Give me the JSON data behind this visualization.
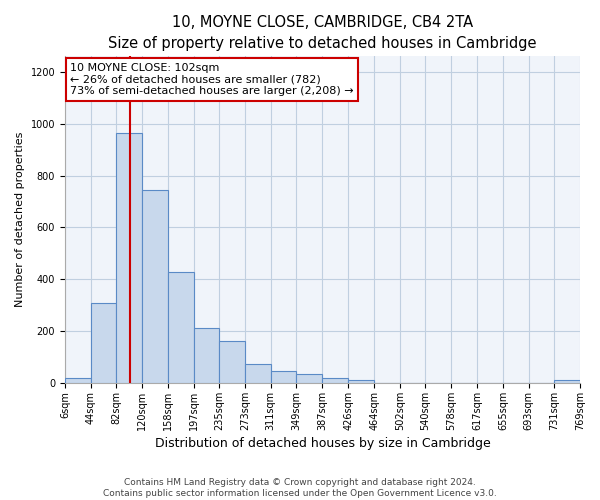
{
  "title": "10, MOYNE CLOSE, CAMBRIDGE, CB4 2TA",
  "subtitle": "Size of property relative to detached houses in Cambridge",
  "xlabel": "Distribution of detached houses by size in Cambridge",
  "ylabel": "Number of detached properties",
  "bar_color": "#c8d8ec",
  "bar_edge_color": "#5a8ac6",
  "bins": [
    6,
    44,
    82,
    120,
    158,
    197,
    235,
    273,
    311,
    349,
    387,
    426,
    464,
    502,
    540,
    578,
    617,
    655,
    693,
    731,
    769
  ],
  "bin_labels": [
    "6sqm",
    "44sqm",
    "82sqm",
    "120sqm",
    "158sqm",
    "197sqm",
    "235sqm",
    "273sqm",
    "311sqm",
    "349sqm",
    "387sqm",
    "426sqm",
    "464sqm",
    "502sqm",
    "540sqm",
    "578sqm",
    "617sqm",
    "655sqm",
    "693sqm",
    "731sqm",
    "769sqm"
  ],
  "counts": [
    20,
    308,
    963,
    743,
    430,
    213,
    163,
    74,
    47,
    35,
    18,
    10,
    0,
    0,
    0,
    0,
    0,
    0,
    0,
    12
  ],
  "property_size": 102,
  "property_line_color": "#cc0000",
  "annotation_text": "10 MOYNE CLOSE: 102sqm\n← 26% of detached houses are smaller (782)\n73% of semi-detached houses are larger (2,208) →",
  "annotation_box_color": "#ffffff",
  "annotation_box_edge_color": "#cc0000",
  "ylim": [
    0,
    1260
  ],
  "yticks": [
    0,
    200,
    400,
    600,
    800,
    1000,
    1200
  ],
  "footer_text": "Contains HM Land Registry data © Crown copyright and database right 2024.\nContains public sector information licensed under the Open Government Licence v3.0.",
  "title_fontsize": 10.5,
  "subtitle_fontsize": 9,
  "xlabel_fontsize": 9,
  "ylabel_fontsize": 8,
  "tick_fontsize": 7,
  "annotation_fontsize": 8,
  "footer_fontsize": 6.5,
  "bg_color": "#f0f4fa"
}
